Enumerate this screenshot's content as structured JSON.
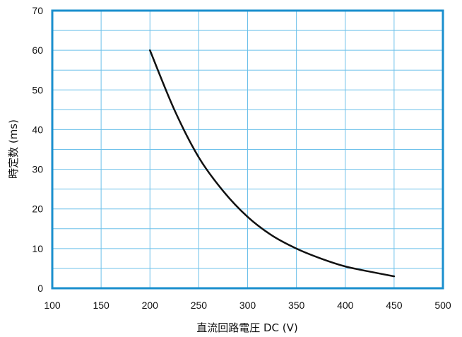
{
  "chart_data": {
    "type": "line",
    "title": "",
    "xlabel": "直流回路電圧 DC (V)",
    "ylabel": "時定数 (ms)",
    "xlim": [
      100,
      500
    ],
    "ylim": [
      0,
      70
    ],
    "x_ticks": [
      100,
      150,
      200,
      250,
      300,
      350,
      400,
      450,
      500
    ],
    "y_ticks": [
      0,
      10,
      20,
      30,
      40,
      50,
      60,
      70
    ],
    "x_minor_step": 50,
    "y_minor_step": 5,
    "grid": true,
    "colors": {
      "frame": "#1a8fce",
      "grid": "#6cc0ea",
      "line": "#111111"
    },
    "series": [
      {
        "x": [
          200,
          225,
          250,
          275,
          300,
          325,
          350,
          375,
          400,
          425,
          450
        ],
        "y": [
          60,
          45,
          33,
          24.5,
          18,
          13.3,
          10,
          7.5,
          5.5,
          4.2,
          3
        ]
      }
    ]
  }
}
